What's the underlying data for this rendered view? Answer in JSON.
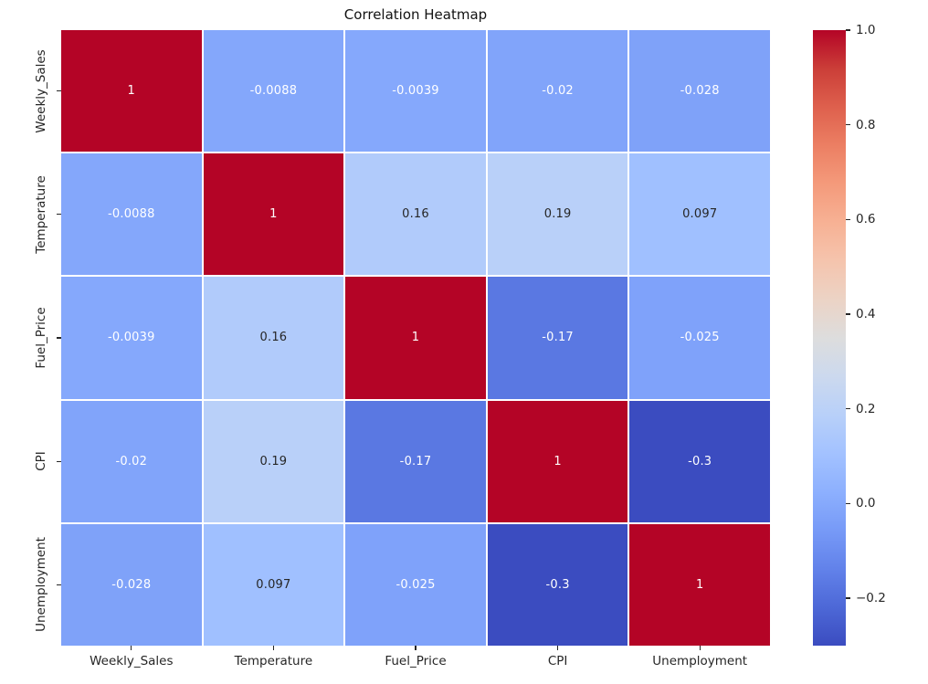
{
  "chart_data": {
    "type": "heatmap",
    "title": "Correlation Heatmap",
    "categories": [
      "Weekly_Sales",
      "Temperature",
      "Fuel_Price",
      "CPI",
      "Unemployment"
    ],
    "matrix": [
      [
        1,
        -0.0088,
        -0.0039,
        -0.02,
        -0.028
      ],
      [
        -0.0088,
        1,
        0.16,
        0.19,
        0.097
      ],
      [
        -0.0039,
        0.16,
        1,
        -0.17,
        -0.025
      ],
      [
        -0.02,
        0.19,
        -0.17,
        1,
        -0.3
      ],
      [
        -0.028,
        0.097,
        -0.025,
        -0.3,
        1
      ]
    ],
    "annotations": [
      [
        "1",
        "-0.0088",
        "-0.0039",
        "-0.02",
        "-0.028"
      ],
      [
        "-0.0088",
        "1",
        "0.16",
        "0.19",
        "0.097"
      ],
      [
        "-0.0039",
        "0.16",
        "1",
        "-0.17",
        "-0.025"
      ],
      [
        "-0.02",
        "0.19",
        "-0.17",
        "1",
        "-0.3"
      ],
      [
        "-0.028",
        "0.097",
        "-0.025",
        "-0.3",
        "1"
      ]
    ],
    "vmin": -0.3,
    "vmax": 1.0,
    "colormap": "coolwarm",
    "colormap_stops": [
      [
        0.0,
        "#3b4cc0"
      ],
      [
        0.0625,
        "#4d68d7"
      ],
      [
        0.125,
        "#6282ea"
      ],
      [
        0.1875,
        "#779af7"
      ],
      [
        0.25,
        "#8db0fe"
      ],
      [
        0.3125,
        "#a3c2ff"
      ],
      [
        0.375,
        "#b8d0f9"
      ],
      [
        0.4375,
        "#ccd9ee"
      ],
      [
        0.5,
        "#dddddd"
      ],
      [
        0.5625,
        "#ecd3c5"
      ],
      [
        0.625,
        "#f5c4ad"
      ],
      [
        0.6875,
        "#f7b194"
      ],
      [
        0.75,
        "#f49a7b"
      ],
      [
        0.8125,
        "#ec7f63"
      ],
      [
        0.875,
        "#de604d"
      ],
      [
        0.9375,
        "#cb3e38"
      ],
      [
        1.0,
        "#b40426"
      ]
    ],
    "colorbar_ticks": [
      {
        "label": "1.0",
        "value": 1.0
      },
      {
        "label": "0.8",
        "value": 0.8
      },
      {
        "label": "0.6",
        "value": 0.6
      },
      {
        "label": "0.4",
        "value": 0.4
      },
      {
        "label": "0.2",
        "value": 0.2
      },
      {
        "label": "0.0",
        "value": 0.0
      },
      {
        "label": "−0.2",
        "value": -0.2
      }
    ],
    "grid_line_color": "#ffffff",
    "annotation_color_dark": "#262626",
    "annotation_color_light": "#ffffff",
    "legend_position": "right",
    "grid": false
  }
}
